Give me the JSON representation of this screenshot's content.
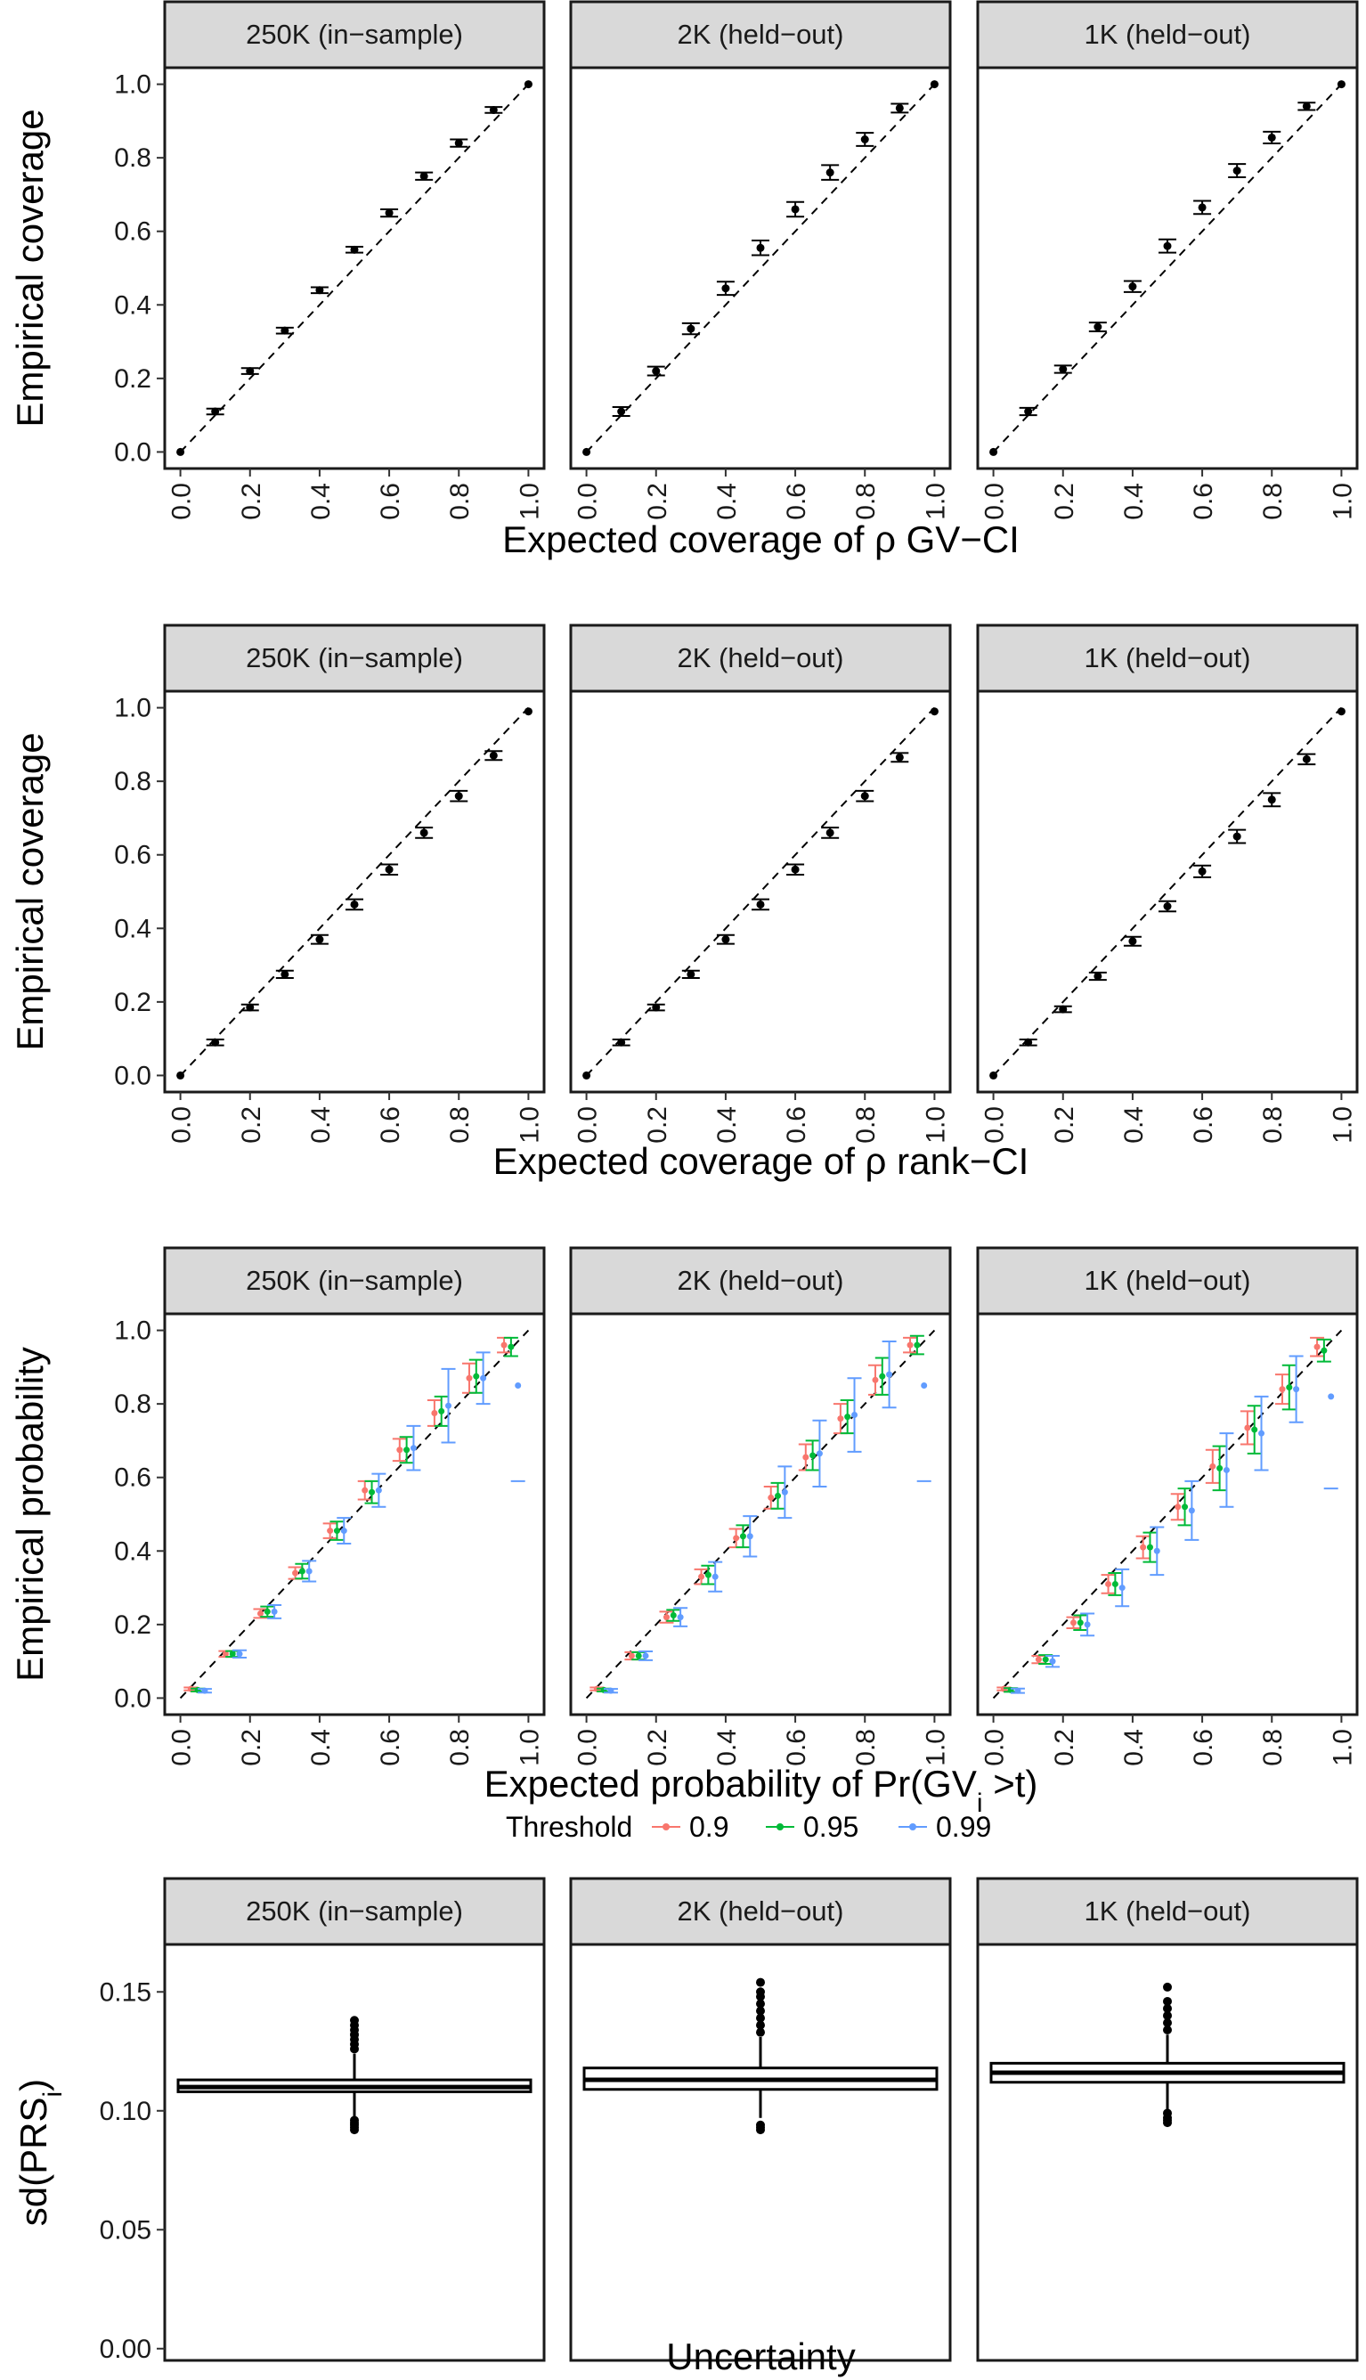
{
  "chart_data": [
    {
      "type": "scatter",
      "xlabel": "Expected coverage of ρ GV−CI",
      "ylabel": "Empirical coverage",
      "xlim": [
        0,
        1
      ],
      "ylim": [
        0,
        1
      ],
      "x_ticks": [
        "0.0",
        "0.2",
        "0.4",
        "0.6",
        "0.8",
        "1.0"
      ],
      "y_ticks": [
        "0.0",
        "0.2",
        "0.4",
        "0.6",
        "0.8",
        "1.0"
      ],
      "reference_line": "y = x (dashed)",
      "facets": [
        {
          "label": "250K (in−sample)",
          "x": [
            0,
            0.1,
            0.2,
            0.3,
            0.4,
            0.5,
            0.6,
            0.7,
            0.8,
            0.9,
            1.0
          ],
          "y": [
            0,
            0.11,
            0.22,
            0.33,
            0.44,
            0.55,
            0.65,
            0.75,
            0.84,
            0.93,
            1.0
          ],
          "err": [
            0,
            0.008,
            0.008,
            0.008,
            0.008,
            0.008,
            0.01,
            0.01,
            0.01,
            0.008,
            0
          ]
        },
        {
          "label": "2K (held−out)",
          "x": [
            0,
            0.1,
            0.2,
            0.3,
            0.4,
            0.5,
            0.6,
            0.7,
            0.8,
            0.9,
            1.0
          ],
          "y": [
            0,
            0.11,
            0.22,
            0.335,
            0.445,
            0.555,
            0.66,
            0.76,
            0.85,
            0.935,
            1.0
          ],
          "err": [
            0,
            0.012,
            0.012,
            0.015,
            0.018,
            0.02,
            0.02,
            0.02,
            0.018,
            0.012,
            0
          ]
        },
        {
          "label": "1K (held−out)",
          "x": [
            0,
            0.1,
            0.2,
            0.3,
            0.4,
            0.5,
            0.6,
            0.7,
            0.8,
            0.9,
            1.0
          ],
          "y": [
            0,
            0.11,
            0.225,
            0.34,
            0.45,
            0.56,
            0.665,
            0.765,
            0.855,
            0.94,
            1.0
          ],
          "err": [
            0,
            0.01,
            0.01,
            0.012,
            0.015,
            0.018,
            0.018,
            0.018,
            0.016,
            0.01,
            0
          ]
        }
      ]
    },
    {
      "type": "scatter",
      "xlabel": "Expected coverage of ρ rank−CI",
      "ylabel": "Empirical coverage",
      "xlim": [
        0,
        1
      ],
      "ylim": [
        0,
        1
      ],
      "x_ticks": [
        "0.0",
        "0.2",
        "0.4",
        "0.6",
        "0.8",
        "1.0"
      ],
      "y_ticks": [
        "0.0",
        "0.2",
        "0.4",
        "0.6",
        "0.8",
        "1.0"
      ],
      "reference_line": "y = x (dashed)",
      "facets": [
        {
          "label": "250K (in−sample)",
          "x": [
            0,
            0.1,
            0.2,
            0.3,
            0.4,
            0.5,
            0.6,
            0.7,
            0.8,
            0.9,
            1.0
          ],
          "y": [
            0,
            0.09,
            0.185,
            0.275,
            0.37,
            0.465,
            0.56,
            0.66,
            0.76,
            0.87,
            0.99
          ],
          "err": [
            0,
            0.008,
            0.008,
            0.01,
            0.012,
            0.014,
            0.014,
            0.014,
            0.014,
            0.012,
            0
          ]
        },
        {
          "label": "2K (held−out)",
          "x": [
            0,
            0.1,
            0.2,
            0.3,
            0.4,
            0.5,
            0.6,
            0.7,
            0.8,
            0.9,
            1.0
          ],
          "y": [
            0,
            0.09,
            0.185,
            0.275,
            0.37,
            0.465,
            0.56,
            0.66,
            0.76,
            0.865,
            0.99
          ],
          "err": [
            0,
            0.008,
            0.008,
            0.01,
            0.012,
            0.014,
            0.014,
            0.014,
            0.014,
            0.012,
            0
          ]
        },
        {
          "label": "1K (held−out)",
          "x": [
            0,
            0.1,
            0.2,
            0.3,
            0.4,
            0.5,
            0.6,
            0.7,
            0.8,
            0.9,
            1.0
          ],
          "y": [
            0,
            0.09,
            0.18,
            0.27,
            0.365,
            0.46,
            0.555,
            0.65,
            0.75,
            0.86,
            0.99
          ],
          "err": [
            0,
            0.008,
            0.008,
            0.01,
            0.012,
            0.014,
            0.016,
            0.018,
            0.018,
            0.014,
            0
          ]
        }
      ]
    },
    {
      "type": "scatter",
      "xlabel": "Expected probability of Pr(GV",
      "xlabel_sub": "i",
      "xlabel_tail": " >t)",
      "ylabel": "Empirical probability",
      "xlim": [
        0,
        1
      ],
      "ylim": [
        0,
        1
      ],
      "x_ticks": [
        "0.0",
        "0.2",
        "0.4",
        "0.6",
        "0.8",
        "1.0"
      ],
      "y_ticks": [
        "0.0",
        "0.2",
        "0.4",
        "0.6",
        "0.8",
        "1.0"
      ],
      "reference_line": "y = x (dashed)",
      "legend": {
        "title": "Threshold",
        "placement": "bottom",
        "entries": [
          {
            "name": "0.9",
            "color": "#F8766D"
          },
          {
            "name": "0.95",
            "color": "#00BA38"
          },
          {
            "name": "0.99",
            "color": "#619CFF"
          }
        ]
      },
      "facets": [
        {
          "label": "250K (in−sample)",
          "series": [
            {
              "name": "0.9",
              "color": "#F8766D",
              "dx": -0.02,
              "x": [
                0.05,
                0.15,
                0.25,
                0.35,
                0.45,
                0.55,
                0.65,
                0.75,
                0.85,
                0.95
              ],
              "y": [
                0.025,
                0.12,
                0.23,
                0.34,
                0.455,
                0.565,
                0.675,
                0.775,
                0.87,
                0.96
              ],
              "err": [
                0.004,
                0.008,
                0.012,
                0.016,
                0.02,
                0.025,
                0.03,
                0.035,
                0.04,
                0.02
              ]
            },
            {
              "name": "0.95",
              "color": "#00BA38",
              "dx": 0.0,
              "x": [
                0.05,
                0.15,
                0.25,
                0.35,
                0.45,
                0.55,
                0.65,
                0.75,
                0.85,
                0.95
              ],
              "y": [
                0.022,
                0.12,
                0.235,
                0.345,
                0.455,
                0.56,
                0.675,
                0.78,
                0.875,
                0.955
              ],
              "err": [
                0.004,
                0.008,
                0.014,
                0.02,
                0.025,
                0.03,
                0.035,
                0.04,
                0.045,
                0.025
              ]
            },
            {
              "name": "0.99",
              "color": "#619CFF",
              "dx": 0.02,
              "x": [
                0.05,
                0.15,
                0.25,
                0.35,
                0.45,
                0.55,
                0.65,
                0.75,
                0.85,
                0.95
              ],
              "y": [
                0.02,
                0.12,
                0.235,
                0.345,
                0.455,
                0.565,
                0.68,
                0.795,
                0.87,
                0.85
              ],
              "err": [
                0.005,
                0.01,
                0.018,
                0.028,
                0.035,
                0.045,
                0.06,
                0.1,
                0.07,
                0.0
              ]
            }
          ]
        },
        {
          "label": "2K (held−out)",
          "series": [
            {
              "name": "0.9",
              "color": "#F8766D",
              "dx": -0.02,
              "x": [
                0.05,
                0.15,
                0.25,
                0.35,
                0.45,
                0.55,
                0.65,
                0.75,
                0.85,
                0.95
              ],
              "y": [
                0.025,
                0.115,
                0.22,
                0.33,
                0.435,
                0.545,
                0.655,
                0.76,
                0.865,
                0.96
              ],
              "err": [
                0.004,
                0.01,
                0.015,
                0.02,
                0.025,
                0.03,
                0.035,
                0.04,
                0.04,
                0.02
              ]
            },
            {
              "name": "0.95",
              "color": "#00BA38",
              "dx": 0.0,
              "x": [
                0.05,
                0.15,
                0.25,
                0.35,
                0.45,
                0.55,
                0.65,
                0.75,
                0.85,
                0.95
              ],
              "y": [
                0.022,
                0.115,
                0.225,
                0.335,
                0.44,
                0.55,
                0.66,
                0.765,
                0.875,
                0.96
              ],
              "err": [
                0.004,
                0.01,
                0.015,
                0.025,
                0.03,
                0.035,
                0.04,
                0.045,
                0.05,
                0.025
              ]
            },
            {
              "name": "0.99",
              "color": "#619CFF",
              "dx": 0.02,
              "x": [
                0.05,
                0.15,
                0.25,
                0.35,
                0.45,
                0.55,
                0.65,
                0.75,
                0.85,
                0.95
              ],
              "y": [
                0.02,
                0.115,
                0.22,
                0.33,
                0.44,
                0.56,
                0.665,
                0.77,
                0.88,
                0.85
              ],
              "err": [
                0.005,
                0.012,
                0.025,
                0.04,
                0.055,
                0.07,
                0.09,
                0.1,
                0.09,
                0.0
              ]
            }
          ]
        },
        {
          "label": "1K (held−out)",
          "series": [
            {
              "name": "0.9",
              "color": "#F8766D",
              "dx": -0.02,
              "x": [
                0.05,
                0.15,
                0.25,
                0.35,
                0.45,
                0.55,
                0.65,
                0.75,
                0.85,
                0.95
              ],
              "y": [
                0.025,
                0.105,
                0.205,
                0.31,
                0.41,
                0.52,
                0.63,
                0.735,
                0.84,
                0.955
              ],
              "err": [
                0.004,
                0.01,
                0.015,
                0.025,
                0.03,
                0.035,
                0.045,
                0.045,
                0.04,
                0.025
              ]
            },
            {
              "name": "0.95",
              "color": "#00BA38",
              "dx": 0.0,
              "x": [
                0.05,
                0.15,
                0.25,
                0.35,
                0.45,
                0.55,
                0.65,
                0.75,
                0.85,
                0.95
              ],
              "y": [
                0.022,
                0.105,
                0.205,
                0.31,
                0.41,
                0.52,
                0.625,
                0.73,
                0.845,
                0.945
              ],
              "err": [
                0.005,
                0.012,
                0.02,
                0.03,
                0.04,
                0.05,
                0.06,
                0.065,
                0.06,
                0.03
              ]
            },
            {
              "name": "0.99",
              "color": "#619CFF",
              "dx": 0.02,
              "x": [
                0.05,
                0.15,
                0.25,
                0.35,
                0.45,
                0.55,
                0.65,
                0.75,
                0.85,
                0.95
              ],
              "y": [
                0.02,
                0.1,
                0.2,
                0.3,
                0.4,
                0.51,
                0.62,
                0.72,
                0.84,
                0.82
              ],
              "err": [
                0.006,
                0.015,
                0.03,
                0.05,
                0.065,
                0.08,
                0.1,
                0.1,
                0.09,
                0.0
              ]
            }
          ]
        }
      ]
    },
    {
      "type": "box",
      "xlabel": "Uncertainty",
      "ylabel": "sd(PRS",
      "ylabel_sub": "i",
      "ylabel_tail": ")",
      "ylim": [
        0,
        0.165
      ],
      "y_ticks": [
        "0.00",
        "0.05",
        "0.10",
        "0.15"
      ],
      "facets": [
        {
          "label": "250K (in−sample)",
          "q1": 0.108,
          "median": 0.11,
          "q3": 0.113,
          "whisker_low": 0.097,
          "whisker_high": 0.124,
          "outliers_low": [
            0.096,
            0.095,
            0.094,
            0.093,
            0.092
          ],
          "outliers_high": [
            0.126,
            0.128,
            0.13,
            0.132,
            0.134,
            0.136,
            0.138
          ]
        },
        {
          "label": "2K (held−out)",
          "q1": 0.109,
          "median": 0.113,
          "q3": 0.118,
          "whisker_low": 0.097,
          "whisker_high": 0.131,
          "outliers_low": [
            0.094,
            0.093,
            0.092
          ],
          "outliers_high": [
            0.133,
            0.136,
            0.139,
            0.142,
            0.145,
            0.148,
            0.15,
            0.154
          ]
        },
        {
          "label": "1K (held−out)",
          "q1": 0.112,
          "median": 0.116,
          "q3": 0.12,
          "whisker_low": 0.1,
          "whisker_high": 0.132,
          "outliers_low": [
            0.099,
            0.097,
            0.096,
            0.095
          ],
          "outliers_high": [
            0.134,
            0.137,
            0.14,
            0.143,
            0.146,
            0.152
          ]
        }
      ]
    }
  ]
}
